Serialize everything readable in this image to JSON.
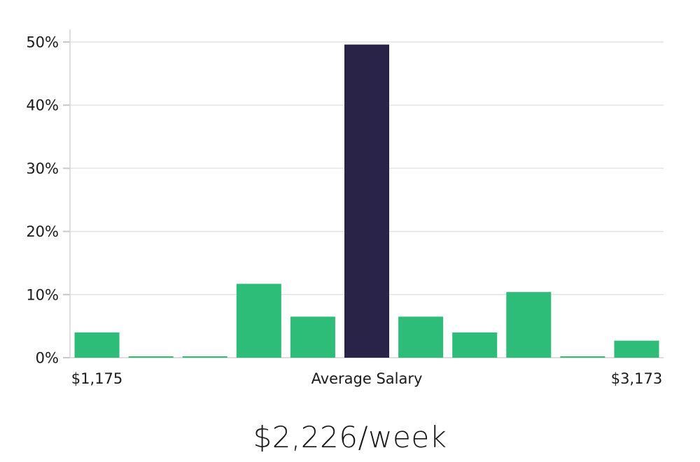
{
  "chart_data": {
    "type": "bar",
    "title": "",
    "xlabel": "",
    "ylabel": "",
    "categories": [
      "$1,175",
      "",
      "",
      "",
      "",
      "Average Salary",
      "",
      "",
      "",
      "",
      "$3,173"
    ],
    "values": [
      4.0,
      0.2,
      0.2,
      11.7,
      6.5,
      49.6,
      6.5,
      4.0,
      10.4,
      0.2,
      2.7
    ],
    "highlight_index": 5,
    "colors": {
      "bar_default": "#2dbd78",
      "bar_highlight": "#282347",
      "gridline": "#e4e4e4",
      "axis_line": "#d4d4d4",
      "tick_mark": "#c8c8c8",
      "tick_label": "#1a1a1a"
    },
    "ylim": [
      0,
      52
    ],
    "yticks": [
      0,
      10,
      20,
      30,
      40,
      50
    ],
    "ytick_suffix": "%",
    "grid": true,
    "legend": false,
    "caption": "$2,226/week"
  }
}
